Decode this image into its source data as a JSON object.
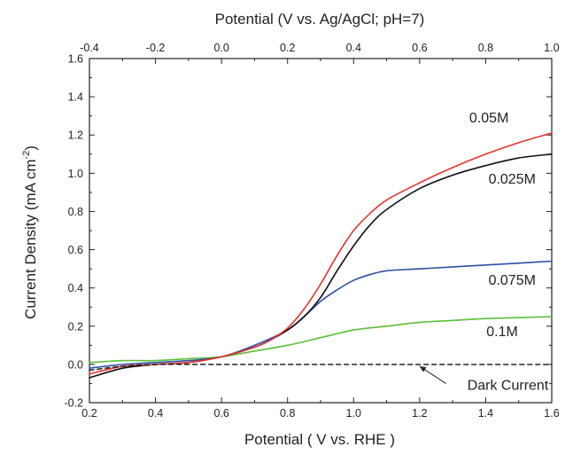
{
  "chart_data": {
    "type": "line",
    "xlabel": "Potential ( V vs. RHE )",
    "x2label": "Potential (V vs.  Ag/AgCl; pH=7)",
    "ylabel_main": "Current Density (mA cm",
    "ylabel_sup": "-2",
    "ylabel_close": ")",
    "xlim": [
      0.2,
      1.6
    ],
    "ylim": [
      -0.2,
      1.6
    ],
    "x2lim": [
      -0.4,
      1.0
    ],
    "xticks": [
      "0.2",
      "0.4",
      "0.6",
      "0.8",
      "1.0",
      "1.2",
      "1.4",
      "1.6"
    ],
    "x2ticks": [
      "-0.4",
      "-0.2",
      "0.0",
      "0.2",
      "0.4",
      "0.6",
      "0.8",
      "1.0"
    ],
    "yticks": [
      "-0.2",
      "0.0",
      "0.2",
      "0.4",
      "0.6",
      "0.8",
      "1.0",
      "1.2",
      "1.4",
      "1.6"
    ],
    "grid": false,
    "series": [
      {
        "name": "0.05M",
        "color": "#e8332a",
        "x": [
          0.2,
          0.3,
          0.4,
          0.5,
          0.6,
          0.7,
          0.75,
          0.8,
          0.85,
          0.9,
          0.95,
          1.0,
          1.05,
          1.1,
          1.2,
          1.3,
          1.4,
          1.5,
          1.6
        ],
        "y": [
          -0.05,
          -0.01,
          0.0,
          0.01,
          0.04,
          0.09,
          0.13,
          0.19,
          0.29,
          0.42,
          0.57,
          0.7,
          0.79,
          0.86,
          0.95,
          1.03,
          1.1,
          1.16,
          1.21
        ]
      },
      {
        "name": "0.025M",
        "color": "#111111",
        "x": [
          0.2,
          0.3,
          0.4,
          0.5,
          0.6,
          0.7,
          0.75,
          0.8,
          0.85,
          0.9,
          0.95,
          1.0,
          1.05,
          1.1,
          1.2,
          1.3,
          1.4,
          1.5,
          1.6
        ],
        "y": [
          -0.07,
          -0.02,
          0.0,
          0.01,
          0.04,
          0.09,
          0.13,
          0.18,
          0.25,
          0.35,
          0.49,
          0.62,
          0.73,
          0.81,
          0.92,
          0.99,
          1.04,
          1.08,
          1.1
        ]
      },
      {
        "name": "0.075M",
        "color": "#2b4fa6",
        "x": [
          0.2,
          0.3,
          0.4,
          0.5,
          0.6,
          0.7,
          0.8,
          0.85,
          0.9,
          0.95,
          1.0,
          1.05,
          1.1,
          1.2,
          1.3,
          1.4,
          1.5,
          1.6
        ],
        "y": [
          -0.02,
          0.0,
          0.01,
          0.02,
          0.04,
          0.1,
          0.18,
          0.25,
          0.33,
          0.39,
          0.44,
          0.47,
          0.49,
          0.5,
          0.51,
          0.52,
          0.53,
          0.54
        ]
      },
      {
        "name": "0.1M",
        "color": "#5cbf3a",
        "x": [
          0.2,
          0.3,
          0.4,
          0.5,
          0.6,
          0.7,
          0.8,
          0.9,
          1.0,
          1.1,
          1.2,
          1.3,
          1.4,
          1.5,
          1.6
        ],
        "y": [
          0.01,
          0.02,
          0.02,
          0.03,
          0.04,
          0.07,
          0.1,
          0.14,
          0.18,
          0.2,
          0.22,
          0.23,
          0.24,
          0.245,
          0.25
        ]
      },
      {
        "name": "Dark Current",
        "color": "#111111",
        "dashed": true,
        "x": [
          0.2,
          0.3,
          0.4,
          0.6,
          0.8,
          1.0,
          1.2,
          1.4,
          1.6
        ],
        "y": [
          -0.03,
          -0.01,
          0.0,
          0.0,
          0.0,
          0.0,
          0.0,
          0.0,
          0.0
        ]
      }
    ],
    "annotations": [
      {
        "text": "0.05M",
        "series": 0,
        "x": 1.41,
        "y": 1.29
      },
      {
        "text": "0.025M",
        "series": 1,
        "x": 1.48,
        "y": 0.97
      },
      {
        "text": "0.075M",
        "series": 2,
        "x": 1.48,
        "y": 0.44
      },
      {
        "text": "0.1M",
        "series": 3,
        "x": 1.45,
        "y": 0.17
      },
      {
        "text": "Dark Current",
        "series": 4,
        "x": 1.59,
        "y": -0.11
      }
    ],
    "arrow": {
      "from": [
        1.28,
        -0.1
      ],
      "to": [
        1.2,
        -0.01
      ]
    }
  }
}
